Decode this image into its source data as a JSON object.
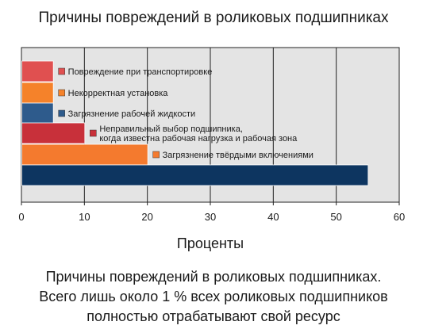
{
  "chart_data": {
    "type": "bar",
    "orientation": "horizontal",
    "title": "Причины повреждений в роликовых подшипниках",
    "xlabel": "Проценты",
    "xlim": [
      0,
      60
    ],
    "xticks": [
      "0",
      "10",
      "20",
      "30",
      "40",
      "50",
      "60"
    ],
    "grid": true,
    "categories": [
      {
        "label_lines": [
          "Повреждение при транспортировке"
        ],
        "value": 5,
        "color": "#e05050"
      },
      {
        "label_lines": [
          "Некорректная установка"
        ],
        "value": 5,
        "color": "#f5822a"
      },
      {
        "label_lines": [
          "Загрязнение рабочей жидкости"
        ],
        "value": 5,
        "color": "#2e5b8c"
      },
      {
        "label_lines": [
          "Неправильный выбор подшипника,",
          "когда известна рабочая нагрузка и рабочая зона"
        ],
        "value": 10,
        "color": "#c8303a"
      },
      {
        "label_lines": [
          "Загрязнение твёрдыми включениями"
        ],
        "value": 20,
        "color": "#f47a2e"
      },
      {
        "label_lines": [],
        "value": 55,
        "color": "#0d3560"
      }
    ]
  },
  "caption": {
    "line1": "Причины повреждений в роликовых подшипниках.",
    "line2": "Всего лишь около 1 % всех роликовых подшипников",
    "line3": "полностью отрабатывают свой ресурс"
  }
}
